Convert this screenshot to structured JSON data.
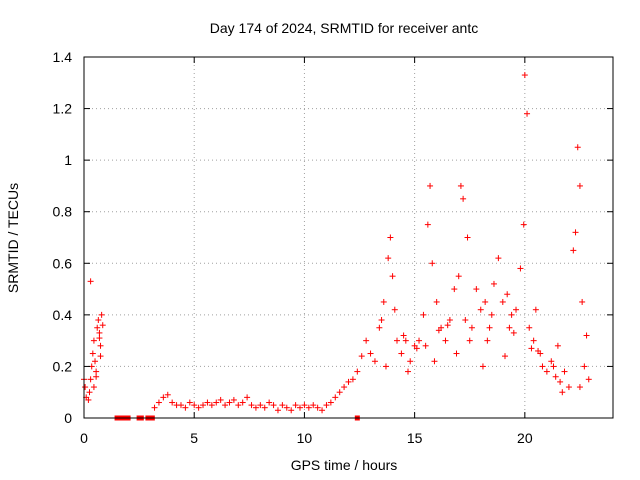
{
  "chart_data": {
    "type": "scatter",
    "title": "Day 174 of 2024, SRMTID for receiver antc",
    "xlabel": "GPS time / hours",
    "ylabel": "SRMTID / TECUs",
    "xlim": [
      0,
      24
    ],
    "ylim": [
      0,
      1.4
    ],
    "xticks": [
      "0",
      "5",
      "10",
      "15",
      "20"
    ],
    "yticks": [
      "0",
      "0.2",
      "0.4",
      "0.6",
      "0.8",
      "1",
      "1.2",
      "1.4"
    ],
    "grid": true,
    "marker": "+",
    "zero_squares_x": [
      1.5,
      1.7,
      1.8,
      1.85,
      2.0,
      2.5,
      2.6,
      2.9,
      3.1,
      12.4
    ],
    "series": [
      {
        "name": "SRMTID",
        "color": "#ff0000",
        "x": [
          0.0,
          0.05,
          0.1,
          0.2,
          0.25,
          0.3,
          0.35,
          0.4,
          0.45,
          0.5,
          0.55,
          0.6,
          0.65,
          0.7,
          0.75,
          0.8,
          0.85,
          0.3,
          0.45,
          0.55,
          0.7,
          0.75,
          3.2,
          3.4,
          3.6,
          3.8,
          4.0,
          4.2,
          4.4,
          4.6,
          4.8,
          5.0,
          5.2,
          5.4,
          5.6,
          5.8,
          6.0,
          6.2,
          6.4,
          6.6,
          6.8,
          7.0,
          7.2,
          7.4,
          7.6,
          7.8,
          8.0,
          8.2,
          8.4,
          8.6,
          8.8,
          9.0,
          9.2,
          9.4,
          9.6,
          9.8,
          10.0,
          10.2,
          10.4,
          10.6,
          10.8,
          11.0,
          11.2,
          11.4,
          11.6,
          11.8,
          12.0,
          12.2,
          12.4,
          12.6,
          12.8,
          13.0,
          13.2,
          13.4,
          13.6,
          13.8,
          13.9,
          14.0,
          14.2,
          14.4,
          14.6,
          14.8,
          15.0,
          15.2,
          15.4,
          15.6,
          15.7,
          15.8,
          16.0,
          16.2,
          16.4,
          16.6,
          16.8,
          17.0,
          17.1,
          17.2,
          17.4,
          17.6,
          17.8,
          18.0,
          18.2,
          18.4,
          18.6,
          18.8,
          19.0,
          19.2,
          19.4,
          19.6,
          19.8,
          19.95,
          20.0,
          20.1,
          20.2,
          20.4,
          20.6,
          20.8,
          21.0,
          21.2,
          21.4,
          21.6,
          21.8,
          22.0,
          22.2,
          22.3,
          22.4,
          22.5,
          22.6,
          22.8,
          22.9,
          13.5,
          14.5,
          15.5,
          16.5,
          17.5,
          18.5,
          19.5,
          20.5,
          21.5,
          22.5,
          13.7,
          14.7,
          15.9,
          16.9,
          18.1,
          19.1,
          20.3,
          21.3,
          14.1,
          15.1,
          16.1,
          17.3,
          18.3,
          19.3,
          20.7,
          21.7,
          22.7
        ],
        "y": [
          0.15,
          0.12,
          0.08,
          0.07,
          0.1,
          0.15,
          0.2,
          0.25,
          0.3,
          0.22,
          0.18,
          0.35,
          0.38,
          0.33,
          0.28,
          0.4,
          0.36,
          0.53,
          0.12,
          0.16,
          0.31,
          0.24,
          0.04,
          0.06,
          0.08,
          0.09,
          0.06,
          0.05,
          0.05,
          0.04,
          0.06,
          0.05,
          0.04,
          0.05,
          0.06,
          0.05,
          0.06,
          0.07,
          0.05,
          0.06,
          0.07,
          0.05,
          0.06,
          0.08,
          0.05,
          0.04,
          0.05,
          0.04,
          0.06,
          0.05,
          0.03,
          0.05,
          0.04,
          0.03,
          0.05,
          0.04,
          0.05,
          0.04,
          0.05,
          0.04,
          0.03,
          0.05,
          0.06,
          0.08,
          0.1,
          0.12,
          0.14,
          0.15,
          0.18,
          0.24,
          0.3,
          0.25,
          0.22,
          0.35,
          0.45,
          0.62,
          0.7,
          0.55,
          0.3,
          0.25,
          0.3,
          0.22,
          0.28,
          0.3,
          0.4,
          0.75,
          0.9,
          0.6,
          0.45,
          0.35,
          0.3,
          0.38,
          0.5,
          0.55,
          0.9,
          0.85,
          0.7,
          0.35,
          0.5,
          0.42,
          0.45,
          0.35,
          0.52,
          0.62,
          0.45,
          0.48,
          0.4,
          0.42,
          0.58,
          0.75,
          1.33,
          1.18,
          0.35,
          0.3,
          0.26,
          0.2,
          0.18,
          0.22,
          0.16,
          0.14,
          0.18,
          0.12,
          0.65,
          0.72,
          1.05,
          0.9,
          0.45,
          0.32,
          0.15,
          0.38,
          0.32,
          0.28,
          0.36,
          0.3,
          0.4,
          0.33,
          0.42,
          0.28,
          0.12,
          0.2,
          0.18,
          0.22,
          0.25,
          0.2,
          0.24,
          0.27,
          0.2,
          0.42,
          0.27,
          0.34,
          0.38,
          0.3,
          0.35,
          0.25,
          0.1,
          0.2
        ]
      }
    ]
  }
}
